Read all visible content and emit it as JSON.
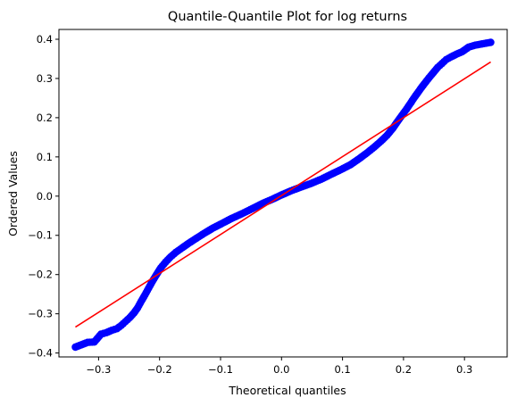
{
  "chart_data": {
    "type": "scatter",
    "title": "Quantile-Quantile Plot for log returns",
    "xlabel": "Theoretical quantiles",
    "ylabel": "Ordered Values",
    "xlim": [
      -0.365,
      0.37
    ],
    "ylim": [
      -0.41,
      0.425
    ],
    "xticks": [
      -0.3,
      -0.2,
      -0.1,
      0.0,
      0.1,
      0.2,
      0.3
    ],
    "xtick_labels": [
      "−0.3",
      "−0.2",
      "−0.1",
      "0.0",
      "0.1",
      "0.2",
      "0.3"
    ],
    "yticks": [
      -0.4,
      -0.3,
      -0.2,
      -0.1,
      0.0,
      0.1,
      0.2,
      0.3,
      0.4
    ],
    "ytick_labels": [
      "−0.4",
      "−0.3",
      "−0.2",
      "−0.1",
      "0.0",
      "0.1",
      "0.2",
      "0.3",
      "0.4"
    ],
    "grid": false,
    "legend": "none",
    "colors": {
      "points": "#0000ff",
      "fit_line": "#ff0000"
    },
    "fit_line": {
      "x": [
        -0.338,
        0.343
      ],
      "y": [
        -0.334,
        0.342
      ]
    },
    "points": {
      "x": [
        -0.338,
        -0.318,
        -0.307,
        -0.296,
        -0.287,
        -0.278,
        -0.27,
        -0.263,
        -0.256,
        -0.249,
        -0.242,
        -0.236,
        -0.23,
        -0.224,
        -0.218,
        -0.212,
        -0.205,
        -0.198,
        -0.19,
        -0.182,
        -0.173,
        -0.163,
        -0.152,
        -0.14,
        -0.127,
        -0.113,
        -0.098,
        -0.082,
        -0.065,
        -0.048,
        -0.03,
        -0.015,
        0.0,
        0.015,
        0.03,
        0.048,
        0.065,
        0.082,
        0.098,
        0.113,
        0.127,
        0.14,
        0.152,
        0.163,
        0.173,
        0.182,
        0.19,
        0.198,
        0.205,
        0.212,
        0.218,
        0.224,
        0.23,
        0.236,
        0.242,
        0.249,
        0.256,
        0.263,
        0.27,
        0.278,
        0.287,
        0.296,
        0.307,
        0.318,
        0.343
      ],
      "y": [
        -0.385,
        -0.373,
        -0.372,
        -0.352,
        -0.348,
        -0.342,
        -0.338,
        -0.33,
        -0.32,
        -0.31,
        -0.298,
        -0.285,
        -0.268,
        -0.252,
        -0.235,
        -0.218,
        -0.2,
        -0.183,
        -0.168,
        -0.155,
        -0.143,
        -0.132,
        -0.12,
        -0.108,
        -0.095,
        -0.082,
        -0.07,
        -0.057,
        -0.045,
        -0.032,
        -0.018,
        -0.008,
        0.003,
        0.013,
        0.022,
        0.032,
        0.043,
        0.056,
        0.068,
        0.08,
        0.095,
        0.11,
        0.125,
        0.14,
        0.155,
        0.172,
        0.19,
        0.207,
        0.222,
        0.238,
        0.252,
        0.265,
        0.278,
        0.29,
        0.302,
        0.315,
        0.328,
        0.338,
        0.348,
        0.355,
        0.362,
        0.368,
        0.38,
        0.385,
        0.392
      ]
    }
  }
}
